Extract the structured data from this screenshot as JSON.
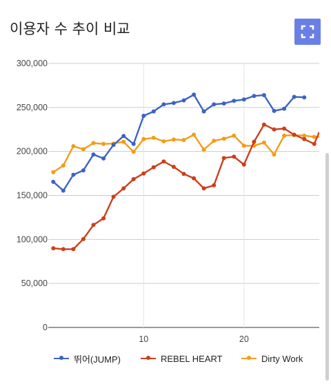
{
  "header": {
    "title": "이용자 수 추이 비교",
    "expand_icon": "fullscreen-icon",
    "expand_color": "#6a7fe6"
  },
  "chart_data": {
    "type": "line",
    "title": "",
    "xlabel": "",
    "ylabel": "",
    "xlim": [
      0.5,
      27.5
    ],
    "ylim": [
      0,
      300000
    ],
    "x_ticks": [
      10,
      20
    ],
    "x_tick_labels": [
      "10",
      "20"
    ],
    "y_ticks": [
      0,
      50000,
      100000,
      150000,
      200000,
      250000,
      300000
    ],
    "y_tick_labels": [
      "0",
      "50,000",
      "100,000",
      "150,000",
      "200,000",
      "250,000",
      "300,000"
    ],
    "grid": true,
    "legend_position": "bottom",
    "series": [
      {
        "name": "뛰어(JUMP)",
        "color": "#3b63c4",
        "x": [
          1,
          2,
          3,
          4,
          5,
          6,
          7,
          8,
          9,
          10,
          11,
          12,
          13,
          14,
          15,
          16,
          17,
          18,
          19,
          20,
          21,
          22,
          23,
          24,
          25,
          26
        ],
        "values": [
          165500,
          155500,
          173500,
          178500,
          196500,
          192000,
          207500,
          217500,
          208500,
          240500,
          245500,
          253500,
          255000,
          258000,
          264500,
          245500,
          253500,
          254500,
          257500,
          259000,
          263000,
          264000,
          246000,
          248500,
          262000,
          261500
        ]
      },
      {
        "name": "REBEL HEART",
        "color": "#cc3e1c",
        "x": [
          1,
          2,
          3,
          4,
          5,
          6,
          7,
          8,
          9,
          10,
          11,
          12,
          13,
          14,
          15,
          16,
          17,
          18,
          19,
          20,
          21,
          22,
          23,
          24,
          25,
          26,
          27,
          27.5
        ],
        "values": [
          90000,
          89000,
          89000,
          100500,
          116500,
          124000,
          148500,
          158000,
          168500,
          175000,
          182000,
          188500,
          182500,
          174500,
          169500,
          158000,
          161500,
          192500,
          194000,
          185000,
          211000,
          230500,
          225000,
          226000,
          219000,
          214000,
          208500,
          222000
        ]
      },
      {
        "name": "Dirty Work",
        "color": "#f39c1a",
        "x": [
          1,
          2,
          3,
          4,
          5,
          6,
          7,
          8,
          9,
          10,
          11,
          12,
          13,
          14,
          15,
          16,
          17,
          18,
          19,
          20,
          21,
          22,
          23,
          24,
          25,
          26,
          27,
          27.5
        ],
        "values": [
          176500,
          184000,
          206000,
          202500,
          209500,
          208500,
          209000,
          211000,
          199500,
          214000,
          215500,
          211500,
          213500,
          213000,
          219000,
          202000,
          212000,
          214500,
          218000,
          206500,
          206500,
          210000,
          196500,
          218000,
          218500,
          218000,
          216500,
          216500
        ]
      }
    ]
  }
}
